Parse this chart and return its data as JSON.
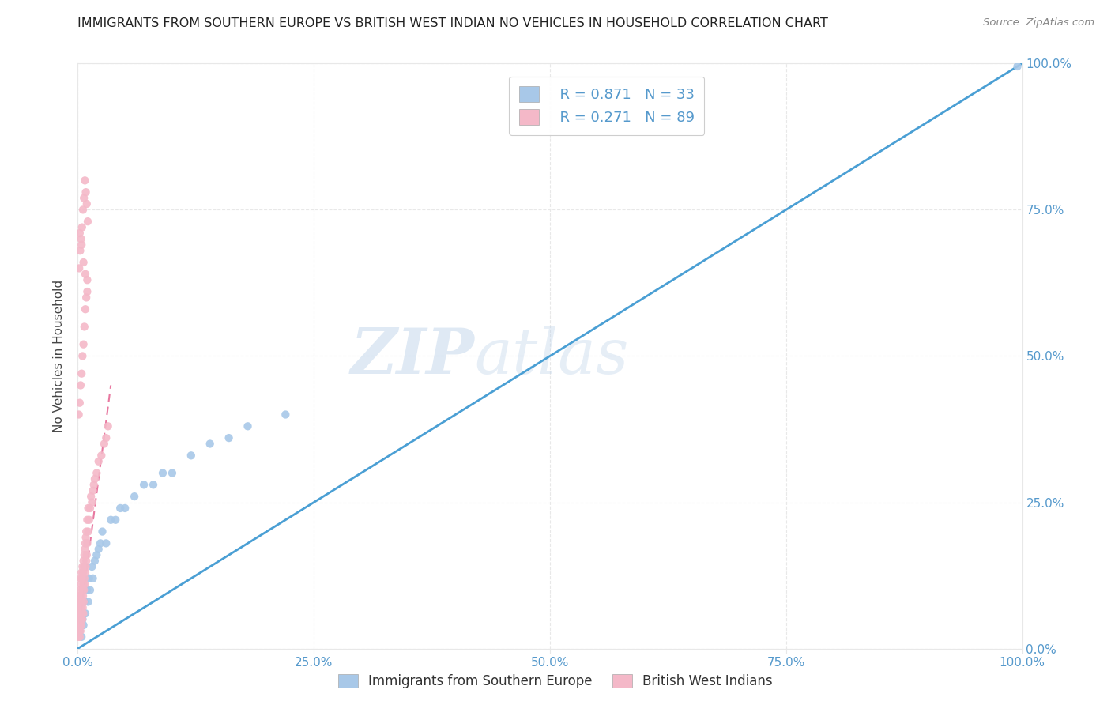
{
  "title": "IMMIGRANTS FROM SOUTHERN EUROPE VS BRITISH WEST INDIAN NO VEHICLES IN HOUSEHOLD CORRELATION CHART",
  "source": "Source: ZipAtlas.com",
  "ylabel": "No Vehicles in Household",
  "legend_label_1": "Immigrants from Southern Europe",
  "legend_label_2": "British West Indians",
  "legend_r1": "R = 0.871",
  "legend_n1": "N = 33",
  "legend_r2": "R = 0.271",
  "legend_n2": "N = 89",
  "watermark_zip": "ZIP",
  "watermark_atlas": "atlas",
  "blue_color": "#a8c8e8",
  "blue_color_dark": "#6aaad4",
  "pink_color": "#f4b8c8",
  "pink_color_dark": "#e8789a",
  "blue_line_color": "#4a9fd4",
  "pink_line_color": "#e878a0",
  "title_color": "#222222",
  "axis_label_color": "#5599cc",
  "grid_color": "#e8e8e8",
  "xlim": [
    0,
    100
  ],
  "ylim": [
    0,
    100
  ],
  "xticks": [
    0,
    25,
    50,
    75,
    100
  ],
  "yticks": [
    0,
    25,
    50,
    75,
    100
  ],
  "xticklabels": [
    "0.0%",
    "25.0%",
    "50.0%",
    "75.0%",
    "100.0%"
  ],
  "yticklabels": [
    "0.0%",
    "25.0%",
    "50.0%",
    "75.0%",
    "100.0%"
  ],
  "blue_x": [
    0.2,
    0.4,
    0.5,
    0.6,
    0.7,
    0.8,
    1.0,
    1.1,
    1.2,
    1.3,
    1.5,
    1.6,
    1.8,
    2.0,
    2.2,
    2.4,
    2.6,
    3.0,
    3.5,
    4.0,
    4.5,
    5.0,
    6.0,
    7.0,
    8.0,
    9.0,
    10.0,
    12.0,
    14.0,
    16.0,
    18.0,
    22.0,
    99.5
  ],
  "blue_y": [
    3.0,
    2.0,
    5.0,
    4.0,
    8.0,
    6.0,
    10.0,
    8.0,
    12.0,
    10.0,
    14.0,
    12.0,
    15.0,
    16.0,
    17.0,
    18.0,
    20.0,
    18.0,
    22.0,
    22.0,
    24.0,
    24.0,
    26.0,
    28.0,
    28.0,
    30.0,
    30.0,
    33.0,
    35.0,
    36.0,
    38.0,
    40.0,
    99.5
  ],
  "pink_x": [
    0.05,
    0.08,
    0.1,
    0.12,
    0.15,
    0.15,
    0.18,
    0.2,
    0.2,
    0.22,
    0.25,
    0.25,
    0.28,
    0.3,
    0.3,
    0.32,
    0.35,
    0.35,
    0.38,
    0.4,
    0.4,
    0.42,
    0.45,
    0.45,
    0.48,
    0.5,
    0.5,
    0.52,
    0.55,
    0.55,
    0.58,
    0.6,
    0.6,
    0.62,
    0.65,
    0.65,
    0.7,
    0.7,
    0.75,
    0.75,
    0.8,
    0.8,
    0.85,
    0.85,
    0.9,
    0.9,
    0.95,
    1.0,
    1.0,
    1.1,
    1.1,
    1.2,
    1.3,
    1.4,
    1.5,
    1.6,
    1.7,
    1.8,
    2.0,
    2.2,
    2.5,
    2.8,
    3.0,
    3.2,
    0.1,
    0.2,
    0.3,
    0.4,
    0.5,
    0.6,
    0.7,
    0.8,
    0.9,
    1.0,
    0.15,
    0.25,
    0.35,
    0.45,
    0.55,
    0.65,
    0.75,
    0.85,
    0.95,
    1.05,
    0.2,
    0.4,
    0.6,
    0.8,
    1.0
  ],
  "pink_y": [
    2.0,
    4.0,
    6.0,
    3.0,
    5.0,
    8.0,
    7.0,
    2.0,
    9.0,
    4.0,
    6.0,
    10.0,
    3.0,
    8.0,
    12.0,
    5.0,
    7.0,
    11.0,
    4.0,
    9.0,
    13.0,
    6.0,
    8.0,
    12.0,
    5.0,
    10.0,
    14.0,
    7.0,
    9.0,
    13.0,
    6.0,
    11.0,
    15.0,
    8.0,
    10.0,
    14.0,
    12.0,
    16.0,
    11.0,
    17.0,
    13.0,
    18.0,
    14.0,
    19.0,
    15.0,
    20.0,
    16.0,
    18.0,
    22.0,
    20.0,
    24.0,
    22.0,
    24.0,
    26.0,
    25.0,
    27.0,
    28.0,
    29.0,
    30.0,
    32.0,
    33.0,
    35.0,
    36.0,
    38.0,
    40.0,
    42.0,
    45.0,
    47.0,
    50.0,
    52.0,
    55.0,
    58.0,
    60.0,
    63.0,
    65.0,
    68.0,
    70.0,
    72.0,
    75.0,
    77.0,
    80.0,
    78.0,
    76.0,
    73.0,
    71.0,
    69.0,
    66.0,
    64.0,
    61.0
  ]
}
